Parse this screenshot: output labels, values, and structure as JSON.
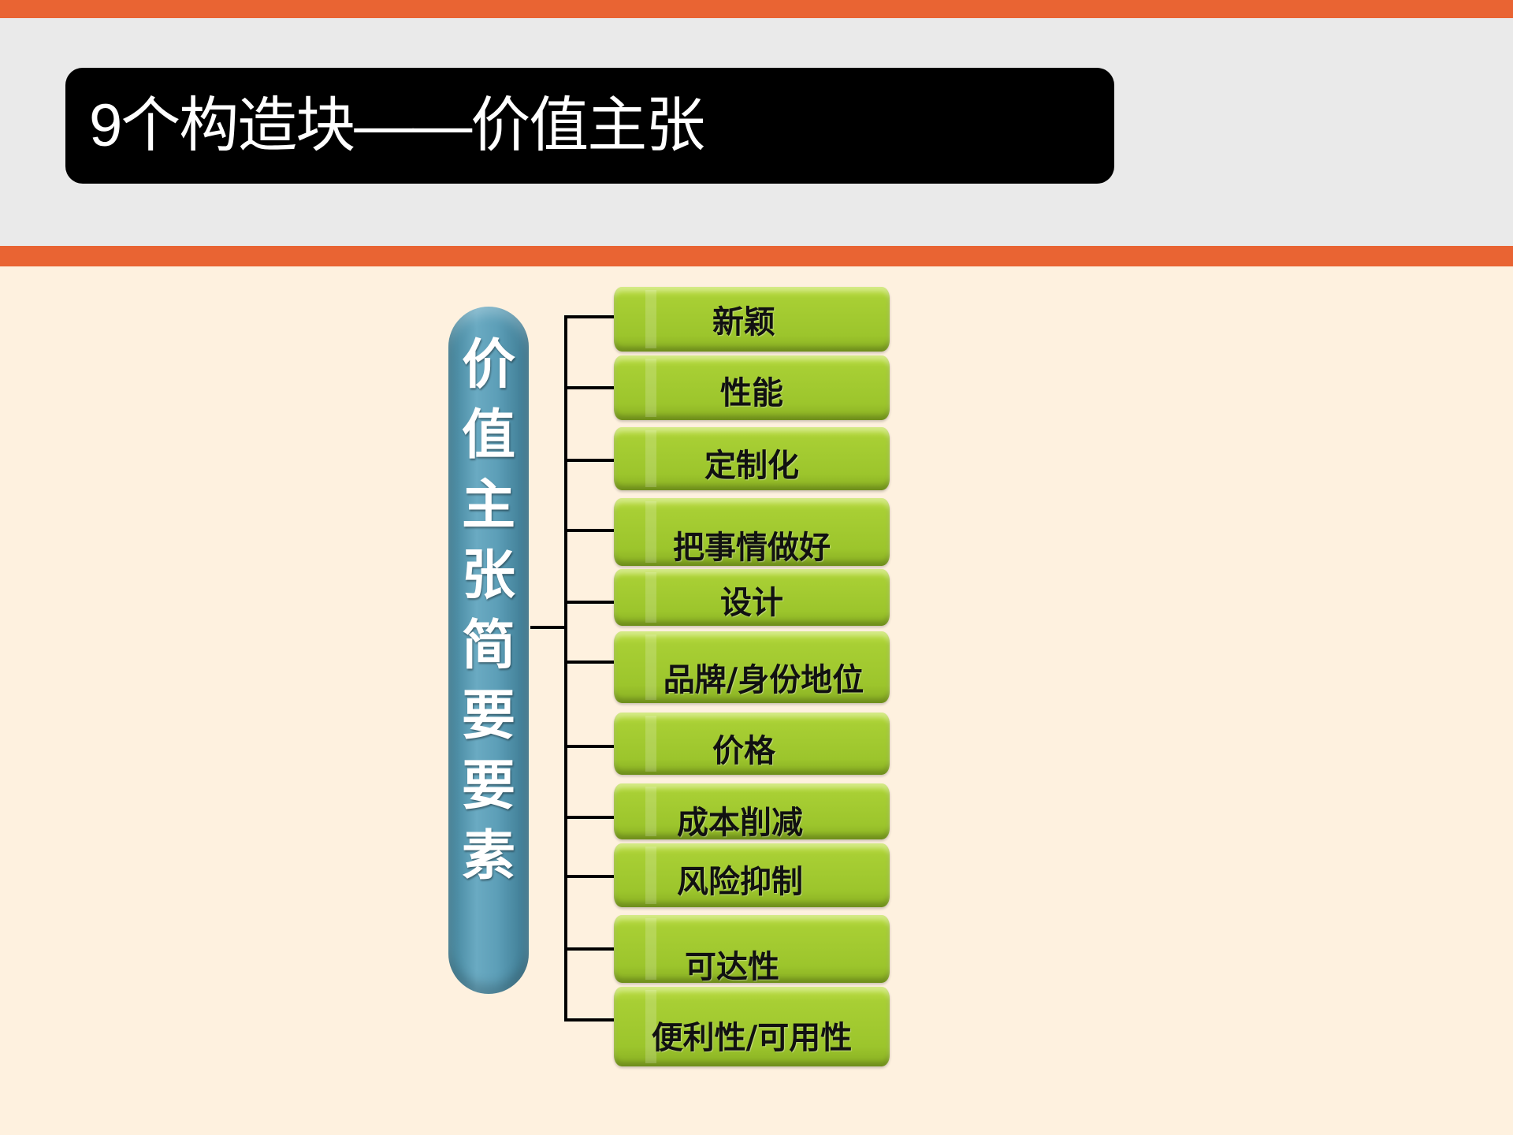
{
  "slide": {
    "title": "9个构造块——价值主张",
    "colors": {
      "accent_orange": "#E96433",
      "header_gray": "#EAEAEA",
      "background": "#FEF1DF",
      "item_green": "#A6CC33",
      "pill_blue": "#5B9FB7"
    }
  },
  "diagram": {
    "root_label": "价值主张简要要素",
    "items": [
      {
        "label": "新颖"
      },
      {
        "label": "性能"
      },
      {
        "label": "定制化"
      },
      {
        "label": "把事情做好"
      },
      {
        "label": "设计"
      },
      {
        "label": "品牌/身份地位"
      },
      {
        "label": "价格"
      },
      {
        "label": "成本削减"
      },
      {
        "label": "风险抑制"
      },
      {
        "label": "可达性"
      },
      {
        "label": "便利性/可用性"
      }
    ]
  }
}
